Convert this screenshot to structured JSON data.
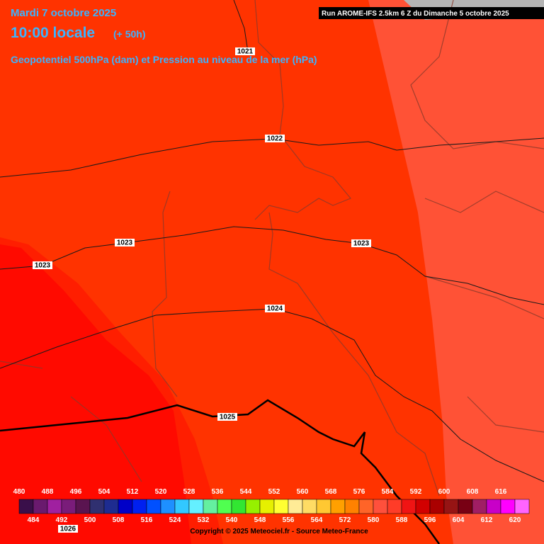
{
  "header": {
    "date": "Mardi 7 octobre 2025",
    "time": "10:00 locale",
    "lead": "(+ 50h)",
    "field": "Geopotentiel 500hPa (dam) et Pression au niveau de la mer (hPa)",
    "run": "Run AROME-IFS 2.5km 6 Z du Dimanche 5 octobre 2025"
  },
  "isobar_labels": [
    1021,
    1022,
    1023,
    1023,
    1023,
    1024,
    1025,
    1026
  ],
  "legend": {
    "colors": [
      "#3a0f4a",
      "#6a1a6e",
      "#a020a0",
      "#7a1c7a",
      "#5a1450",
      "#303070",
      "#1e2c90",
      "#0000c8",
      "#0020f0",
      "#0050ff",
      "#1e90ff",
      "#32c8ff",
      "#64f0ff",
      "#64f0a0",
      "#50ff50",
      "#32e632",
      "#96f000",
      "#e6f000",
      "#ffff32",
      "#ffeb96",
      "#ffdc64",
      "#ffc832",
      "#ffa000",
      "#ff8200",
      "#ff6428",
      "#ff503c",
      "#ff3c28",
      "#f01414",
      "#d20000",
      "#aa0000",
      "#961414",
      "#780014",
      "#a01e64",
      "#c800c8",
      "#ff00ff",
      "#ff64ff"
    ],
    "upper_labels": [
      480,
      488,
      496,
      504,
      512,
      520,
      528,
      536,
      544,
      552,
      560,
      568,
      576,
      584,
      592,
      600,
      608,
      616
    ],
    "lower_labels": [
      484,
      492,
      500,
      508,
      516,
      524,
      532,
      540,
      548,
      556,
      564,
      572,
      580,
      588,
      596,
      604,
      612,
      620
    ]
  },
  "footer": {
    "copyright": "Copyright © 2025 Meteociel.fr - Source Meteo-France"
  }
}
